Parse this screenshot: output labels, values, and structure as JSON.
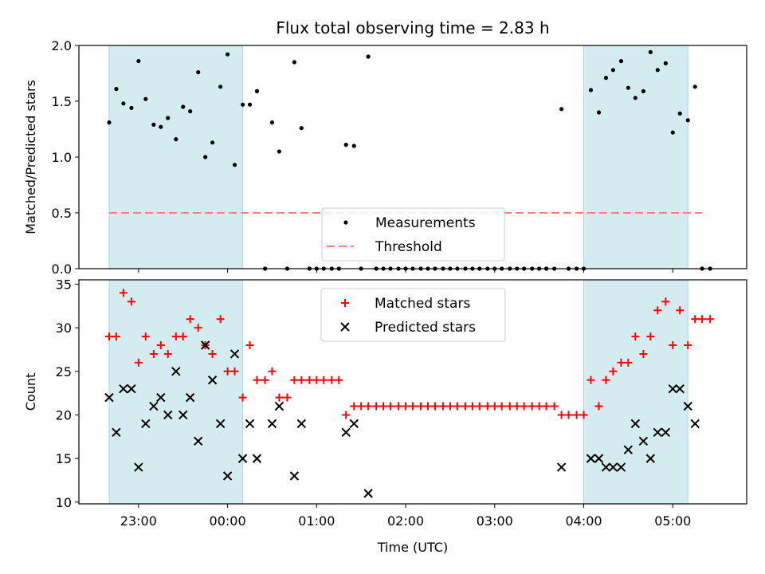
{
  "chart_data": {
    "type": "scatter",
    "title": "Flux total observing time = 2.83 h",
    "xlabel": "Time (UTC)",
    "x_ticks": [
      "23:00",
      "00:00",
      "01:00",
      "02:00",
      "03:00",
      "04:00",
      "05:00"
    ],
    "x_tick_hours": [
      23,
      24,
      25,
      26,
      27,
      28,
      29
    ],
    "xlim_hours": [
      22.33,
      29.83
    ],
    "shaded_intervals_hours": [
      [
        22.67,
        24.17
      ],
      [
        28.0,
        29.17
      ]
    ],
    "shade_color": "#d4ebf0",
    "panels": [
      {
        "name": "ratio-panel",
        "ylabel": "Matched/Predicted stars",
        "ylim": [
          0,
          2.0
        ],
        "y_ticks": [
          "0.0",
          "0.5",
          "1.0",
          "1.5",
          "2.0"
        ],
        "legend": "lower-center",
        "threshold": {
          "name": "Threshold",
          "value": 0.5,
          "x_range_hours": [
            22.67,
            29.33
          ],
          "color": "#ff7f7f"
        },
        "series": [
          {
            "name": "Measurements",
            "marker": "dot",
            "color": "#000000",
            "points": [
              [
                22.67,
                1.31
              ],
              [
                22.75,
                1.61
              ],
              [
                22.83,
                1.48
              ],
              [
                22.92,
                1.44
              ],
              [
                23.0,
                1.86
              ],
              [
                23.08,
                1.52
              ],
              [
                23.17,
                1.29
              ],
              [
                23.25,
                1.27
              ],
              [
                23.33,
                1.35
              ],
              [
                23.42,
                1.16
              ],
              [
                23.5,
                1.45
              ],
              [
                23.58,
                1.41
              ],
              [
                23.67,
                1.76
              ],
              [
                23.75,
                1.0
              ],
              [
                23.83,
                1.13
              ],
              [
                23.92,
                1.63
              ],
              [
                24.0,
                1.92
              ],
              [
                24.08,
                0.93
              ],
              [
                24.17,
                1.47
              ],
              [
                24.25,
                1.47
              ],
              [
                24.33,
                1.59
              ],
              [
                24.42,
                0.0
              ],
              [
                24.5,
                1.31
              ],
              [
                24.58,
                1.05
              ],
              [
                24.67,
                0.0
              ],
              [
                24.75,
                1.85
              ],
              [
                24.83,
                1.26
              ],
              [
                24.92,
                0.0
              ],
              [
                25.0,
                0.0
              ],
              [
                25.08,
                0.0
              ],
              [
                25.17,
                0.0
              ],
              [
                25.25,
                0.0
              ],
              [
                25.33,
                1.11
              ],
              [
                25.42,
                1.1
              ],
              [
                25.5,
                0.0
              ],
              [
                25.58,
                1.9
              ],
              [
                25.67,
                0.0
              ],
              [
                25.75,
                0.0
              ],
              [
                25.83,
                0.0
              ],
              [
                25.92,
                0.0
              ],
              [
                26.0,
                0.0
              ],
              [
                26.08,
                0.0
              ],
              [
                26.17,
                0.0
              ],
              [
                26.25,
                0.0
              ],
              [
                26.33,
                0.0
              ],
              [
                26.42,
                0.0
              ],
              [
                26.5,
                0.0
              ],
              [
                26.58,
                0.0
              ],
              [
                26.67,
                0.0
              ],
              [
                26.75,
                0.0
              ],
              [
                26.83,
                0.0
              ],
              [
                26.92,
                0.0
              ],
              [
                27.0,
                0.0
              ],
              [
                27.08,
                0.0
              ],
              [
                27.17,
                0.0
              ],
              [
                27.25,
                0.0
              ],
              [
                27.33,
                0.0
              ],
              [
                27.42,
                0.0
              ],
              [
                27.5,
                0.0
              ],
              [
                27.58,
                0.0
              ],
              [
                27.67,
                0.0
              ],
              [
                27.75,
                1.43
              ],
              [
                27.83,
                0.0
              ],
              [
                27.92,
                0.0
              ],
              [
                28.0,
                0.0
              ],
              [
                28.08,
                1.6
              ],
              [
                28.17,
                1.4
              ],
              [
                28.25,
                1.71
              ],
              [
                28.33,
                1.78
              ],
              [
                28.42,
                1.86
              ],
              [
                28.5,
                1.62
              ],
              [
                28.58,
                1.53
              ],
              [
                28.67,
                1.59
              ],
              [
                28.75,
                1.94
              ],
              [
                28.83,
                1.78
              ],
              [
                28.92,
                1.84
              ],
              [
                29.0,
                1.22
              ],
              [
                29.08,
                1.39
              ],
              [
                29.17,
                1.33
              ],
              [
                29.25,
                1.63
              ],
              [
                29.33,
                0.0
              ],
              [
                29.42,
                0.0
              ]
            ]
          }
        ]
      },
      {
        "name": "count-panel",
        "ylabel": "Count",
        "ylim": [
          9.8,
          35.5
        ],
        "y_ticks": [
          "10",
          "15",
          "20",
          "25",
          "30",
          "35"
        ],
        "y_tick_values": [
          10,
          15,
          20,
          25,
          30,
          35
        ],
        "legend": "upper-center",
        "series": [
          {
            "name": "Matched stars",
            "marker": "plus",
            "color": "#ff0000",
            "points": [
              [
                22.67,
                29
              ],
              [
                22.75,
                29
              ],
              [
                22.83,
                34
              ],
              [
                22.92,
                33
              ],
              [
                23.0,
                26
              ],
              [
                23.08,
                29
              ],
              [
                23.17,
                27
              ],
              [
                23.25,
                28
              ],
              [
                23.33,
                27
              ],
              [
                23.42,
                29
              ],
              [
                23.5,
                29
              ],
              [
                23.58,
                31
              ],
              [
                23.67,
                30
              ],
              [
                23.75,
                28
              ],
              [
                23.83,
                27
              ],
              [
                23.92,
                31
              ],
              [
                24.0,
                25
              ],
              [
                24.08,
                25
              ],
              [
                24.17,
                22
              ],
              [
                24.25,
                28
              ],
              [
                24.33,
                24
              ],
              [
                24.42,
                24
              ],
              [
                24.5,
                25
              ],
              [
                24.58,
                22
              ],
              [
                24.67,
                22
              ],
              [
                24.75,
                24
              ],
              [
                24.83,
                24
              ],
              [
                24.92,
                24
              ],
              [
                25.0,
                24
              ],
              [
                25.08,
                24
              ],
              [
                25.17,
                24
              ],
              [
                25.25,
                24
              ],
              [
                25.33,
                20
              ],
              [
                25.42,
                21
              ],
              [
                25.5,
                21
              ],
              [
                25.58,
                21
              ],
              [
                25.67,
                21
              ],
              [
                25.75,
                21
              ],
              [
                25.83,
                21
              ],
              [
                25.92,
                21
              ],
              [
                26.0,
                21
              ],
              [
                26.08,
                21
              ],
              [
                26.17,
                21
              ],
              [
                26.25,
                21
              ],
              [
                26.33,
                21
              ],
              [
                26.42,
                21
              ],
              [
                26.5,
                21
              ],
              [
                26.58,
                21
              ],
              [
                26.67,
                21
              ],
              [
                26.75,
                21
              ],
              [
                26.83,
                21
              ],
              [
                26.92,
                21
              ],
              [
                27.0,
                21
              ],
              [
                27.08,
                21
              ],
              [
                27.17,
                21
              ],
              [
                27.25,
                21
              ],
              [
                27.33,
                21
              ],
              [
                27.42,
                21
              ],
              [
                27.5,
                21
              ],
              [
                27.58,
                21
              ],
              [
                27.67,
                21
              ],
              [
                27.75,
                20
              ],
              [
                27.83,
                20
              ],
              [
                27.92,
                20
              ],
              [
                28.0,
                20
              ],
              [
                28.08,
                24
              ],
              [
                28.17,
                21
              ],
              [
                28.25,
                24
              ],
              [
                28.33,
                25
              ],
              [
                28.42,
                26
              ],
              [
                28.5,
                26
              ],
              [
                28.58,
                29
              ],
              [
                28.67,
                27
              ],
              [
                28.75,
                29
              ],
              [
                28.83,
                32
              ],
              [
                28.92,
                33
              ],
              [
                29.0,
                28
              ],
              [
                29.08,
                32
              ],
              [
                29.17,
                28
              ],
              [
                29.25,
                31
              ],
              [
                29.33,
                31
              ],
              [
                29.42,
                31
              ]
            ]
          },
          {
            "name": "Predicted stars",
            "marker": "x",
            "color": "#000000",
            "points": [
              [
                22.67,
                22
              ],
              [
                22.75,
                18
              ],
              [
                22.83,
                23
              ],
              [
                22.92,
                23
              ],
              [
                23.0,
                14
              ],
              [
                23.08,
                19
              ],
              [
                23.17,
                21
              ],
              [
                23.25,
                22
              ],
              [
                23.33,
                20
              ],
              [
                23.42,
                25
              ],
              [
                23.5,
                20
              ],
              [
                23.58,
                22
              ],
              [
                23.67,
                17
              ],
              [
                23.75,
                28
              ],
              [
                23.83,
                24
              ],
              [
                23.92,
                19
              ],
              [
                24.0,
                13
              ],
              [
                24.08,
                27
              ],
              [
                24.17,
                15
              ],
              [
                24.25,
                19
              ],
              [
                24.33,
                15
              ],
              [
                24.5,
                19
              ],
              [
                24.58,
                21
              ],
              [
                24.75,
                13
              ],
              [
                24.83,
                19
              ],
              [
                25.33,
                18
              ],
              [
                25.42,
                19
              ],
              [
                25.58,
                11
              ],
              [
                27.75,
                14
              ],
              [
                28.08,
                15
              ],
              [
                28.17,
                15
              ],
              [
                28.25,
                14
              ],
              [
                28.33,
                14
              ],
              [
                28.42,
                14
              ],
              [
                28.5,
                16
              ],
              [
                28.58,
                19
              ],
              [
                28.67,
                17
              ],
              [
                28.75,
                15
              ],
              [
                28.83,
                18
              ],
              [
                28.92,
                18
              ],
              [
                29.0,
                23
              ],
              [
                29.08,
                23
              ],
              [
                29.17,
                21
              ],
              [
                29.25,
                19
              ]
            ]
          }
        ]
      }
    ]
  }
}
